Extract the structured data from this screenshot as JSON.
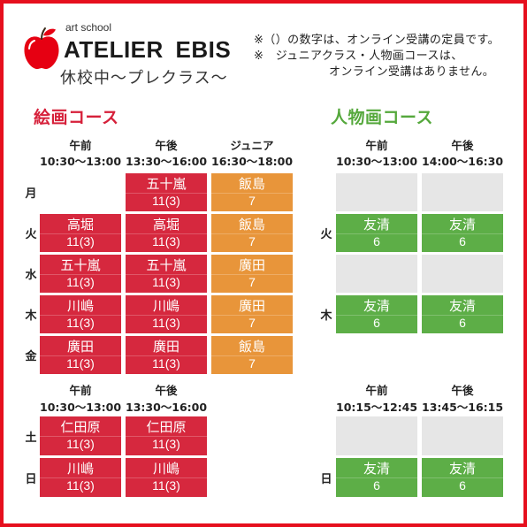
{
  "header": {
    "logo_icon": "apple-icon",
    "tagline": "art school",
    "brand": "ATELIER EBIS",
    "status": "休校中〜プレクラス〜"
  },
  "notes": {
    "line1": "※（）の数字は、オンライン受講の定員です。",
    "line2": "※　ジュニアクラス・人物画コースは、",
    "line3": "オンライン受講はありません。"
  },
  "colors": {
    "frame": "#e60f1e",
    "logo": "#e60012",
    "painting_title": "#d6203a",
    "figure_title": "#55a83c"
  },
  "painting": {
    "title": "絵画コース",
    "weekday": {
      "columns": [
        {
          "period": "午前",
          "time": "10:30〜13:00"
        },
        {
          "period": "午後",
          "time": "13:30〜16:00"
        },
        {
          "period": "ジュニア",
          "time": "16:30〜18:00"
        }
      ],
      "rows": [
        {
          "day": "月",
          "cells": [
            null,
            {
              "teacher": "五十嵐",
              "capacity": "11(3)",
              "color": "#d6283e"
            },
            {
              "teacher": "飯島",
              "capacity": "7",
              "color": "#e8953a"
            }
          ]
        },
        {
          "day": "火",
          "cells": [
            {
              "teacher": "高堀",
              "capacity": "11(3)",
              "color": "#d6283e"
            },
            {
              "teacher": "高堀",
              "capacity": "11(3)",
              "color": "#d6283e"
            },
            {
              "teacher": "飯島",
              "capacity": "7",
              "color": "#e8953a"
            }
          ]
        },
        {
          "day": "水",
          "cells": [
            {
              "teacher": "五十嵐",
              "capacity": "11(3)",
              "color": "#d6283e"
            },
            {
              "teacher": "五十嵐",
              "capacity": "11(3)",
              "color": "#d6283e"
            },
            {
              "teacher": "廣田",
              "capacity": "7",
              "color": "#e8953a"
            }
          ]
        },
        {
          "day": "木",
          "cells": [
            {
              "teacher": "川嶋",
              "capacity": "11(3)",
              "color": "#d6283e"
            },
            {
              "teacher": "川嶋",
              "capacity": "11(3)",
              "color": "#d6283e"
            },
            {
              "teacher": "廣田",
              "capacity": "7",
              "color": "#e8953a"
            }
          ]
        },
        {
          "day": "金",
          "cells": [
            {
              "teacher": "廣田",
              "capacity": "11(3)",
              "color": "#d6283e"
            },
            {
              "teacher": "廣田",
              "capacity": "11(3)",
              "color": "#d6283e"
            },
            {
              "teacher": "飯島",
              "capacity": "7",
              "color": "#e8953a"
            }
          ]
        }
      ]
    },
    "weekend": {
      "columns": [
        {
          "period": "午前",
          "time": "10:30〜13:00"
        },
        {
          "period": "午後",
          "time": "13:30〜16:00"
        }
      ],
      "rows": [
        {
          "day": "土",
          "cells": [
            {
              "teacher": "仁田原",
              "capacity": "11(3)",
              "color": "#d6283e"
            },
            {
              "teacher": "仁田原",
              "capacity": "11(3)",
              "color": "#d6283e"
            }
          ]
        },
        {
          "day": "日",
          "cells": [
            {
              "teacher": "川嶋",
              "capacity": "11(3)",
              "color": "#d6283e"
            },
            {
              "teacher": "川嶋",
              "capacity": "11(3)",
              "color": "#d6283e"
            }
          ]
        }
      ]
    }
  },
  "figure": {
    "title": "人物画コース",
    "weekday": {
      "columns": [
        {
          "period": "午前",
          "time": "10:30〜13:00"
        },
        {
          "period": "午後",
          "time": "14:00〜16:30"
        }
      ],
      "rows": [
        {
          "day": "",
          "cells": [
            {
              "color": "#e6e6e6"
            },
            {
              "color": "#e6e6e6"
            }
          ]
        },
        {
          "day": "火",
          "cells": [
            {
              "teacher": "友清",
              "capacity": "6",
              "color": "#5dae47"
            },
            {
              "teacher": "友清",
              "capacity": "6",
              "color": "#5dae47"
            }
          ]
        },
        {
          "day": "",
          "cells": [
            {
              "color": "#e6e6e6"
            },
            {
              "color": "#e6e6e6"
            }
          ]
        },
        {
          "day": "木",
          "cells": [
            {
              "teacher": "友清",
              "capacity": "6",
              "color": "#5dae47"
            },
            {
              "teacher": "友清",
              "capacity": "6",
              "color": "#5dae47"
            }
          ]
        }
      ]
    },
    "weekend": {
      "columns": [
        {
          "period": "午前",
          "time": "10:15〜12:45"
        },
        {
          "period": "午後",
          "time": "13:45〜16:15"
        }
      ],
      "rows": [
        {
          "day": "",
          "cells": [
            {
              "color": "#e6e6e6"
            },
            {
              "color": "#e6e6e6"
            }
          ]
        },
        {
          "day": "日",
          "cells": [
            {
              "teacher": "友清",
              "capacity": "6",
              "color": "#5dae47"
            },
            {
              "teacher": "友清",
              "capacity": "6",
              "color": "#5dae47"
            }
          ]
        }
      ]
    }
  }
}
